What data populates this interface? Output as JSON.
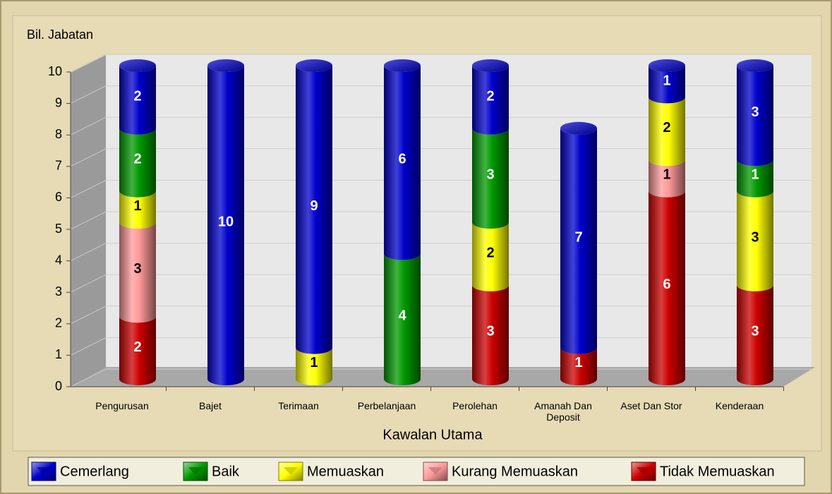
{
  "chart_data": {
    "type": "stacked-cylinder",
    "y_label": "Bil. Jabatan",
    "x_label": "Kawalan Utama",
    "categories": [
      "Pengurusan",
      "Bajet",
      "Terimaan",
      "Perbelanjaan",
      "Perolehan",
      "Amanah Dan Deposit",
      "Aset Dan Stor",
      "Kenderaan"
    ],
    "series": [
      {
        "name": "Cemerlang",
        "color": "#0000cc",
        "values": [
          2,
          10,
          9,
          6,
          2,
          7,
          1,
          3
        ]
      },
      {
        "name": "Baik",
        "color": "#009900",
        "values": [
          2,
          null,
          null,
          4,
          3,
          null,
          null,
          1
        ]
      },
      {
        "name": "Memuaskan",
        "color": "#ffff00",
        "values": [
          1,
          null,
          1,
          null,
          2,
          null,
          2,
          3
        ]
      },
      {
        "name": "Kurang Memuaskan",
        "color": "#ff9999",
        "values": [
          3,
          null,
          null,
          null,
          null,
          null,
          1,
          null
        ]
      },
      {
        "name": "Tidak Memuaskan",
        "color": "#cc0000",
        "values": [
          2,
          null,
          null,
          null,
          3,
          1,
          6,
          3
        ]
      }
    ],
    "ylim": [
      0,
      10
    ],
    "yticks": [
      0,
      1,
      2,
      3,
      4,
      5,
      6,
      7,
      8,
      9,
      10
    ],
    "grid": true,
    "legend": "bottom"
  }
}
